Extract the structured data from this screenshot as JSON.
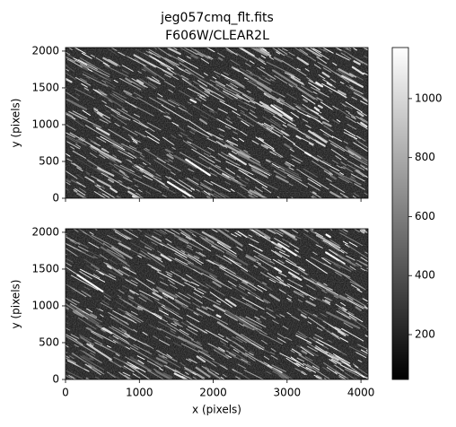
{
  "chart_data": {
    "type": "image",
    "title": "jeg057cmq_flt.fits",
    "subtitle": "F606W/CLEAR2L",
    "colormap": "gray",
    "panels": [
      {
        "ylabel": "y (pixels)",
        "xlim": [
          0,
          4096
        ],
        "ylim": [
          0,
          2048
        ],
        "xticks": [
          0,
          1000,
          2000,
          3000,
          4000
        ],
        "yticks": [
          0,
          500,
          1000,
          1500,
          2000
        ]
      },
      {
        "ylabel": "y (pixels)",
        "xlabel": "x (pixels)",
        "xlim": [
          0,
          4096
        ],
        "ylim": [
          0,
          2048
        ],
        "xticks": [
          0,
          1000,
          2000,
          3000,
          4000
        ],
        "yticks": [
          0,
          500,
          1000,
          1500,
          2000
        ]
      }
    ],
    "colorbar": {
      "ylim": [
        48,
        1173
      ],
      "yticks": [
        200,
        400,
        600,
        800,
        1000
      ]
    }
  }
}
